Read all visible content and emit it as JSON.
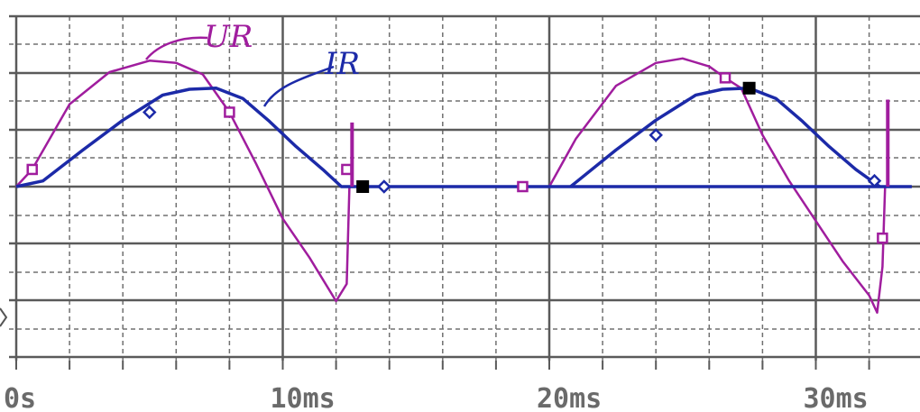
{
  "chart_data": {
    "type": "line",
    "x_unit": "ms",
    "xlim": [
      0,
      33.6
    ],
    "x_ticks": [
      {
        "value": 0,
        "label": "0s"
      },
      {
        "value": 10,
        "label": "10ms"
      },
      {
        "value": 20,
        "label": "20ms"
      },
      {
        "value": 30,
        "label": "30ms"
      }
    ],
    "grid": true,
    "series": [
      {
        "name": "UR",
        "color": "#a01d9e",
        "marker": "square",
        "x": [
          0,
          0.6,
          2,
          3.5,
          5,
          6,
          7,
          8,
          9,
          10,
          11,
          12,
          12.4,
          12.5,
          20,
          21,
          22.5,
          24,
          25,
          26,
          26.6,
          27.2,
          28,
          29,
          30,
          31,
          32,
          32.3,
          32.5,
          32.6
        ],
        "y": [
          0,
          0.15,
          0.72,
          1.0,
          1.1,
          1.08,
          0.98,
          0.65,
          0.2,
          -0.28,
          -0.62,
          -1.0,
          -0.85,
          0,
          0,
          0.42,
          0.88,
          1.08,
          1.12,
          1.05,
          0.95,
          0.86,
          0.45,
          0.05,
          -0.3,
          -0.65,
          -0.95,
          -1.1,
          -0.7,
          0
        ],
        "markers_x": [
          0.6,
          8,
          12.4,
          19,
          26.6,
          32.5
        ],
        "markers_y": [
          0.15,
          0.65,
          0.15,
          0,
          0.95,
          -0.45
        ]
      },
      {
        "name": "IR",
        "color": "#1c2aa8",
        "marker": "diamond",
        "x": [
          0,
          1,
          2.5,
          4,
          5.5,
          6.5,
          7.5,
          8.5,
          9.5,
          10.5,
          11.5,
          12.2,
          33.6
        ],
        "y": [
          0,
          0.05,
          0.32,
          0.58,
          0.8,
          0.85,
          0.86,
          0.77,
          0.57,
          0.35,
          0.15,
          0,
          0
        ],
        "x2": [
          20.8,
          22.5,
          24,
          25.5,
          26.5,
          27.5,
          28.5,
          29.5,
          30.5,
          31.5,
          32.4
        ],
        "y2": [
          0,
          0.32,
          0.58,
          0.8,
          0.85,
          0.86,
          0.77,
          0.57,
          0.35,
          0.15,
          0
        ],
        "markers_x": [
          5,
          13.8,
          24,
          32.2
        ],
        "markers_y": [
          0.65,
          0,
          0.45,
          0.05
        ]
      }
    ],
    "cursor_markers_x": [
      13,
      27.5
    ],
    "cursor_markers_y": [
      0,
      0.86
    ],
    "annotations": [
      {
        "text": "UR",
        "target": "UR",
        "color": "#a01d9e"
      },
      {
        "text": "IR",
        "target": "IR",
        "color": "#1c2aa8"
      }
    ]
  }
}
